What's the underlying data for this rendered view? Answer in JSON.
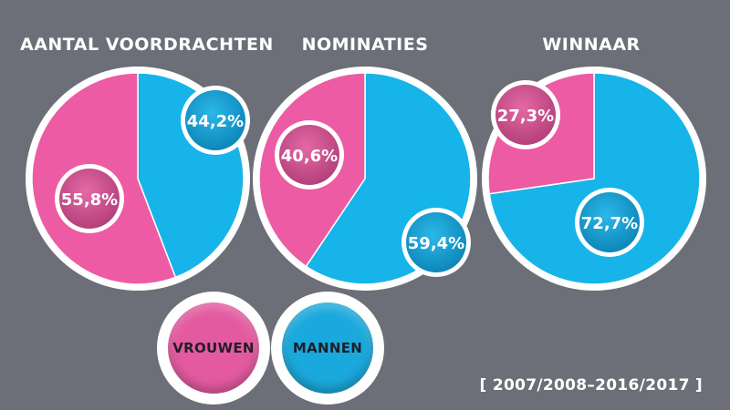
{
  "colors": {
    "vrouwen": "#ec5ba3",
    "mannen": "#16b4e8",
    "border": "#ffffff",
    "background": "#6c6f77"
  },
  "chart_data": [
    {
      "type": "pie",
      "title": "AANTAL VOORDRACHTEN",
      "slices": [
        {
          "name": "MANNEN",
          "value": 44.2,
          "label": "44,2%"
        },
        {
          "name": "VROUWEN",
          "value": 55.8,
          "label": "55,8%"
        }
      ]
    },
    {
      "type": "pie",
      "title": "NOMINATIES",
      "slices": [
        {
          "name": "MANNEN",
          "value": 59.4,
          "label": "59,4%"
        },
        {
          "name": "VROUWEN",
          "value": 40.6,
          "label": "40,6%"
        }
      ]
    },
    {
      "type": "pie",
      "title": "WINNAAR",
      "slices": [
        {
          "name": "MANNEN",
          "value": 72.7,
          "label": "72,7%"
        },
        {
          "name": "VROUWEN",
          "value": 27.3,
          "label": "27,3%"
        }
      ]
    }
  ],
  "legend": {
    "vrouwen": "VROUWEN",
    "mannen": "MANNEN"
  },
  "period": "[ 2007/2008–2016/2017 ]"
}
